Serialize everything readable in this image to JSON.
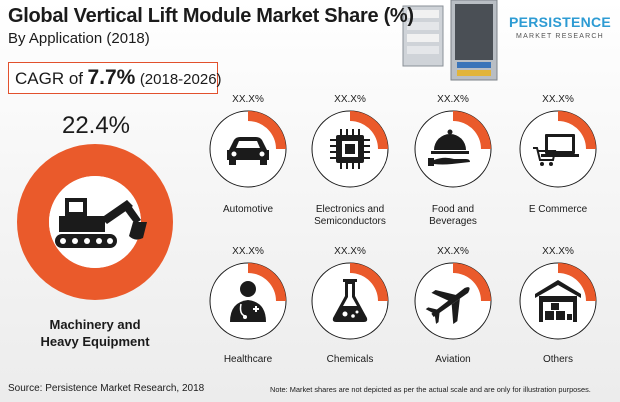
{
  "title": "Global Vertical Lift Module Market Share (%)",
  "subtitle": "By Application (2018)",
  "cagr": {
    "label": "CAGR of",
    "value": "7.7%",
    "period": "(2018-2026)"
  },
  "logo": {
    "main": "PERSISTENCE",
    "sub": "MARKET RESEARCH"
  },
  "colors": {
    "accent": "#ea5a2b",
    "ring_background": "#ffffff",
    "icon": "#1b1b1b"
  },
  "chart_data": {
    "type": "pie",
    "title": "Global Vertical Lift Module Market Share (%)",
    "subtitle": "By Application (2018)",
    "segments": [
      {
        "name": "Machinery and Heavy Equipment",
        "value_label": "22.4%",
        "value": 22.4,
        "icon": "excavator-icon"
      },
      {
        "name": "Automotive",
        "value_label": "XX.X%",
        "value": null,
        "icon": "car-icon"
      },
      {
        "name": "Electronics and Semiconductors",
        "value_label": "XX.X%",
        "value": null,
        "icon": "chip-icon"
      },
      {
        "name": "Food and Beverages",
        "value_label": "XX.X%",
        "value": null,
        "icon": "cloche-icon"
      },
      {
        "name": "E Commerce",
        "value_label": "XX.X%",
        "value": null,
        "icon": "laptop-cart-icon"
      },
      {
        "name": "Healthcare",
        "value_label": "XX.X%",
        "value": null,
        "icon": "doctor-icon"
      },
      {
        "name": "Chemicals",
        "value_label": "XX.X%",
        "value": null,
        "icon": "flask-icon"
      },
      {
        "name": "Aviation",
        "value_label": "XX.X%",
        "value": null,
        "icon": "airplane-icon"
      },
      {
        "name": "Others",
        "value_label": "XX.X%",
        "value": null,
        "icon": "warehouse-icon"
      }
    ]
  },
  "segments_display": {
    "machinery": {
      "label_line1": "Machinery and",
      "label_line2": "Heavy Equipment",
      "pct": "22.4%"
    },
    "automotive": {
      "label": "Automotive",
      "pct": "XX.X%"
    },
    "electronics": {
      "label_line1": "Electronics and",
      "label_line2": "Semiconductors",
      "pct": "XX.X%"
    },
    "food": {
      "label_line1": "Food and",
      "label_line2": "Beverages",
      "pct": "XX.X%"
    },
    "ecommerce": {
      "label": "E Commerce",
      "pct": "XX.X%"
    },
    "healthcare": {
      "label": "Healthcare",
      "pct": "XX.X%"
    },
    "chemicals": {
      "label": "Chemicals",
      "pct": "XX.X%"
    },
    "aviation": {
      "label": "Aviation",
      "pct": "XX.X%"
    },
    "others": {
      "label": "Others",
      "pct": "XX.X%"
    }
  },
  "footer": {
    "source": "Source: Persistence Market Research, 2018",
    "note": "Note: Market shares are not depicted as per the actual scale and are only for illustration purposes."
  }
}
